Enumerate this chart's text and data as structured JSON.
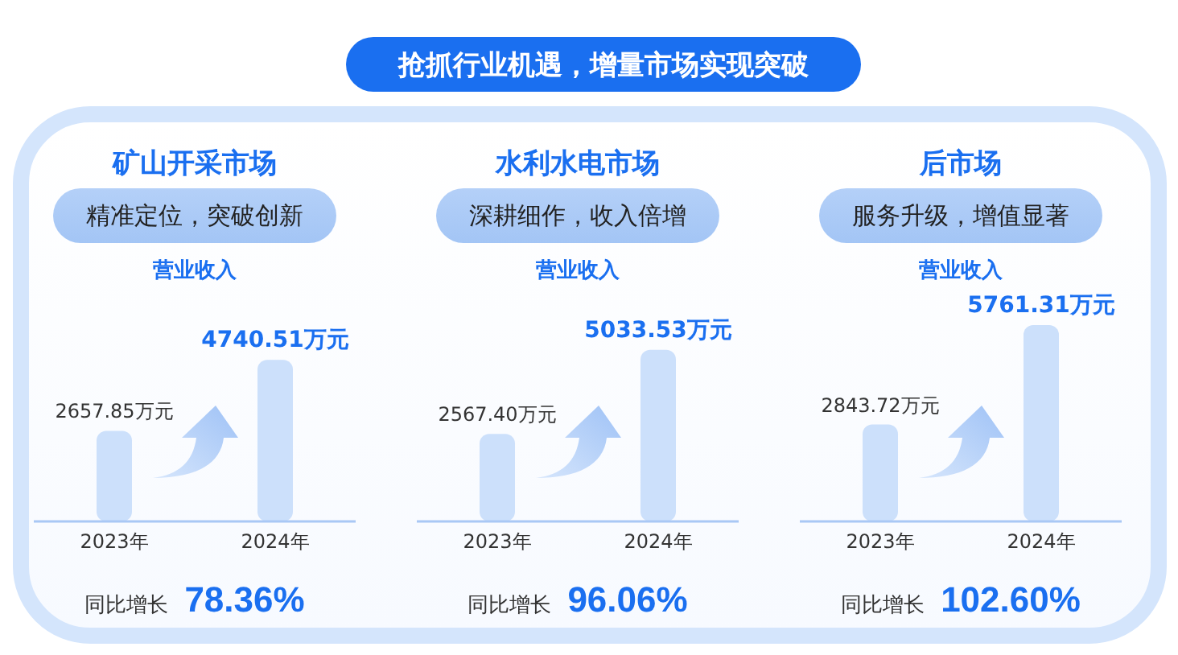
{
  "chart_data": [
    {
      "type": "other",
      "title": "抢抓行业机遇，增量市场实现突破"
    },
    {
      "type": "bar",
      "title": "矿山开采市场",
      "subtitle": "精准定位，突破创新",
      "ylabel": "营业收入",
      "categories": [
        "2023年",
        "2024年"
      ],
      "values": [
        2657.85,
        4740.51
      ],
      "value_labels": [
        "2657.85万元",
        "4740.51万元"
      ],
      "color": "#cce0fb",
      "tick_labels": "x",
      "annotations": [
        "同比增长",
        "78.36%"
      ]
    },
    {
      "type": "bar",
      "title": "水利水电市场",
      "subtitle": "深耕细作，收入倍增",
      "ylabel": "营业收入",
      "categories": [
        "2023年",
        "2024年"
      ],
      "values": [
        2567.4,
        5033.53
      ],
      "value_labels": [
        "2567.40万元",
        "5033.53万元"
      ],
      "color": "#cce0fb",
      "tick_labels": "x",
      "annotations": [
        "同比增长",
        "96.06%"
      ]
    },
    {
      "type": "bar",
      "title": "后市场",
      "subtitle": "服务升级，增值显著",
      "ylabel": "营业收入",
      "categories": [
        "2023年",
        "2024年"
      ],
      "values": [
        2843.72,
        5761.31
      ],
      "value_labels": [
        "2843.72万元",
        "5761.31万元"
      ],
      "color": "#cce0fb",
      "tick_labels": "x",
      "annotations": [
        "同比增长",
        "102.60%"
      ]
    }
  ]
}
